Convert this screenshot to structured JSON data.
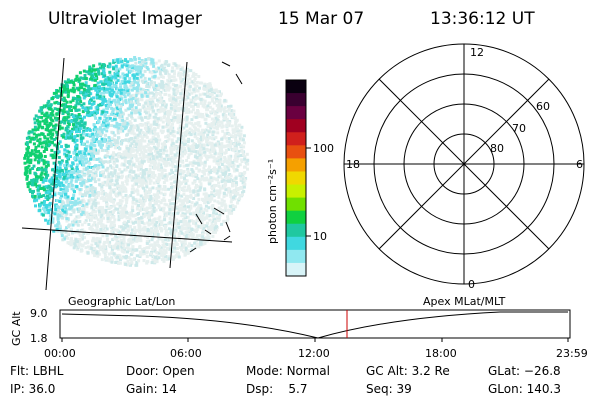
{
  "header": {
    "title": "Ultraviolet Imager",
    "date": "15 Mar 07",
    "time": "13:36:12 UT"
  },
  "colorbar": {
    "label": "photon cm⁻²s⁻¹",
    "ticks": [
      "100",
      "10"
    ],
    "colors": [
      "#0a0010",
      "#3a0030",
      "#6a0040",
      "#a00020",
      "#d0201c",
      "#e85010",
      "#f5a000",
      "#f0d800",
      "#c8f000",
      "#70e000",
      "#10d040",
      "#20c8a0",
      "#40d8e0",
      "#90e8f0",
      "#d8f4f8"
    ]
  },
  "polar": {
    "mlt_labels": {
      "top": "12",
      "left": "18",
      "right": "6",
      "bottom": "0"
    },
    "lat_labels": [
      "60",
      "70",
      "80"
    ]
  },
  "timeline": {
    "left_label": "Geographic Lat/Lon",
    "right_label": "Apex MLat/MLT",
    "y_axis_label": "GC Alt",
    "y_ticks": [
      "9.0",
      "1.8"
    ],
    "x_ticks": [
      "00:00",
      "06:00",
      "12:00",
      "18:00",
      "23:59"
    ],
    "marker_color": "#cc0000"
  },
  "footer": {
    "row1": [
      {
        "key": "Flt:",
        "value": "LBHL"
      },
      {
        "key": "Door:",
        "value": "Open"
      },
      {
        "key": "Mode:",
        "value": "Normal"
      },
      {
        "key": "GC Alt:",
        "value": "3.2 Re"
      },
      {
        "key": "GLat:",
        "value": "−26.8"
      }
    ],
    "row2": [
      {
        "key": "IP:",
        "value": "36.0"
      },
      {
        "key": "Gain:",
        "value": "14"
      },
      {
        "key": "Dsp:",
        "value": "5.7"
      },
      {
        "key": "Seq:",
        "value": "39"
      },
      {
        "key": "GLon:",
        "value": "140.3"
      }
    ]
  }
}
